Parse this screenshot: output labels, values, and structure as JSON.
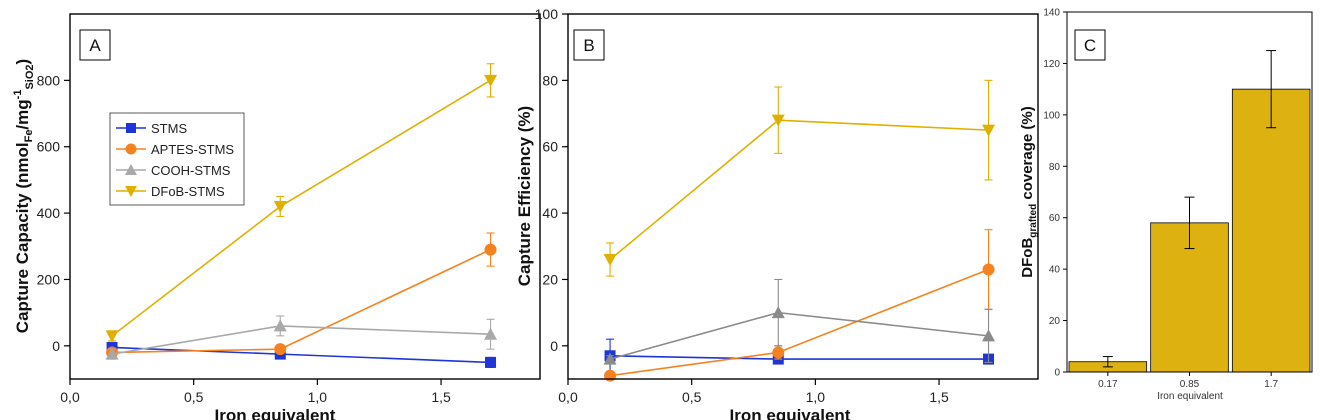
{
  "chart_data": [
    {
      "type": "line",
      "panel_label": "A",
      "xlabel": "Iron equivalent",
      "ylabel_parts": {
        "main": "Capture Capacity (nmol",
        "sub1": "Fe",
        "mid": "/mg",
        "sup": "-1",
        "sub2": "SiO2",
        "end": ")"
      },
      "xlim": [
        0,
        1.9
      ],
      "ylim": [
        -100,
        1000
      ],
      "xticks": [
        0.0,
        0.5,
        1.0,
        1.5
      ],
      "xtick_labels": [
        "0,0",
        "0,5",
        "1,0",
        "1,5"
      ],
      "yticks": [
        0,
        200,
        400,
        600,
        800
      ],
      "ytick_labels": [
        "0",
        "200",
        "400",
        "600",
        "800"
      ],
      "x": [
        0.17,
        0.85,
        1.7
      ],
      "legend_position": "center-left",
      "series": [
        {
          "name": "STMS",
          "color": "#1f35d6",
          "marker": "square",
          "values": [
            -5,
            -25,
            -50
          ],
          "errors": [
            15,
            10,
            15
          ]
        },
        {
          "name": "APTES-STMS",
          "color": "#f5821f",
          "marker": "circle",
          "values": [
            -20,
            -10,
            290
          ],
          "errors": [
            10,
            10,
            50
          ]
        },
        {
          "name": "COOH-STMS",
          "color": "#a9a9a9",
          "marker": "triangle-up",
          "values": [
            -25,
            60,
            35
          ],
          "errors": [
            15,
            30,
            45
          ]
        },
        {
          "name": "DFoB-STMS",
          "color": "#e0b000",
          "marker": "triangle-down",
          "values": [
            30,
            420,
            800
          ],
          "errors": [
            15,
            30,
            50
          ]
        }
      ]
    },
    {
      "type": "line",
      "panel_label": "B",
      "xlabel": "Iron equivalent",
      "ylabel": "Capture Efficiency (%)",
      "xlim": [
        0,
        1.9
      ],
      "ylim": [
        -10,
        100
      ],
      "xticks": [
        0.0,
        0.5,
        1.0,
        1.5
      ],
      "xtick_labels": [
        "0,0",
        "0,5",
        "1,0",
        "1,5"
      ],
      "yticks": [
        0,
        20,
        40,
        60,
        80,
        100
      ],
      "ytick_labels": [
        "0",
        "20",
        "40",
        "60",
        "80",
        "100"
      ],
      "x": [
        0.17,
        0.85,
        1.7
      ],
      "series": [
        {
          "name": "STMS",
          "color": "#1f35d6",
          "marker": "square",
          "values": [
            -3,
            -4,
            -4
          ],
          "errors": [
            5,
            1,
            1
          ]
        },
        {
          "name": "APTES-STMS",
          "color": "#f5821f",
          "marker": "circle",
          "values": [
            -9,
            -2,
            23
          ],
          "errors": [
            1,
            2,
            12
          ]
        },
        {
          "name": "COOH-STMS",
          "color": "#8a8a8a",
          "marker": "triangle-up",
          "values": [
            -4,
            10,
            3
          ],
          "errors": [
            1,
            10,
            8
          ]
        },
        {
          "name": "DFoB-STMS",
          "color": "#e0b000",
          "marker": "triangle-down",
          "values": [
            26,
            68,
            65
          ],
          "errors": [
            5,
            10,
            15
          ]
        }
      ]
    },
    {
      "type": "bar",
      "panel_label": "C",
      "xlabel": "Iron equivalent",
      "ylabel_parts": {
        "main": "DFoB",
        "sub": "grafted",
        "end": " coverage (%)"
      },
      "categories": [
        "0.17",
        "0.85",
        "1.7"
      ],
      "values": [
        4,
        58,
        110
      ],
      "errors": [
        2,
        10,
        15
      ],
      "color": "#ddb10f",
      "ylim": [
        0,
        140
      ],
      "yticks": [
        0,
        20,
        40,
        60,
        80,
        100,
        120,
        140
      ],
      "ytick_labels": [
        "0",
        "20",
        "40",
        "60",
        "80",
        "100",
        "120",
        "140"
      ]
    }
  ]
}
